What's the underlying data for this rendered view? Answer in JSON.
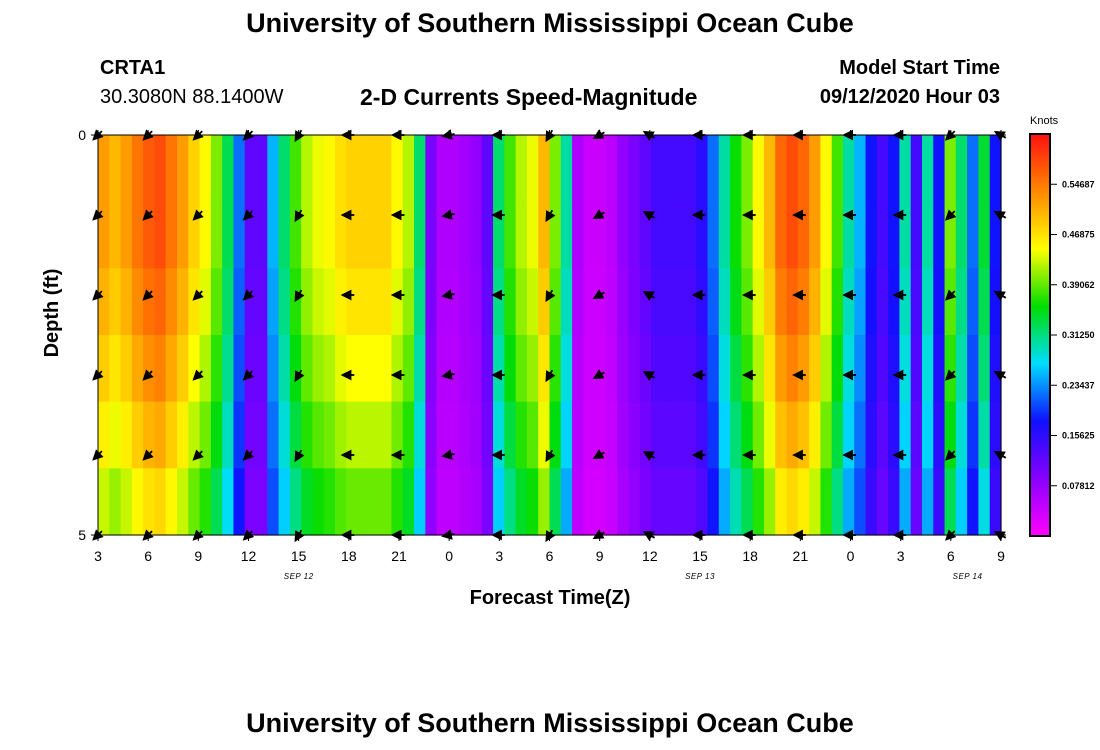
{
  "header": {
    "title": "University of Southern Mississippi Ocean Cube",
    "station": "CRTA1",
    "coords": "30.3080N 88.1400W",
    "product": "2-D Currents Speed-Magnitude",
    "model_start_label": "Model Start Time",
    "model_start_value": "09/12/2020 Hour 03"
  },
  "footer": {
    "title": "University of Southern Mississippi Ocean Cube"
  },
  "chart_data": {
    "type": "heatmap",
    "xlabel": "Forecast Time(Z)",
    "ylabel": "Depth (ft)",
    "x_hours": [
      0,
      54
    ],
    "y_range": [
      0,
      5
    ],
    "y_ticks": [
      "0",
      "5"
    ],
    "x_ticks": [
      "3",
      "6",
      "9",
      "12",
      "15",
      "18",
      "21",
      "0",
      "3",
      "6",
      "9",
      "12",
      "15",
      "18",
      "21",
      "0",
      "3",
      "6",
      "9"
    ],
    "day_labels": [
      {
        "text": "SEP 12",
        "hour": 12
      },
      {
        "text": "SEP 13",
        "hour": 36
      },
      {
        "text": "SEP 14",
        "hour": 52
      }
    ],
    "colorbar": {
      "label": "Knots",
      "vmin": 0,
      "vmax": 0.625,
      "ticks": [
        "0.54687",
        "0.46875",
        "0.39062",
        "0.31250",
        "0.23437",
        "0.15625",
        "0.07812"
      ],
      "tick_values": [
        0.546875,
        0.46875,
        0.390625,
        0.3125,
        0.234375,
        0.15625,
        0.078125
      ],
      "colors": [
        "#ff00ff",
        "#8800ff",
        "#1010ff",
        "#00ddff",
        "#00dd00",
        "#ffff00",
        "#ff8800",
        "#ff1010"
      ]
    },
    "speed_column_profile_knots": [
      0.52,
      0.5,
      0.52,
      0.55,
      0.57,
      0.58,
      0.55,
      0.52,
      0.48,
      0.45,
      0.4,
      0.33,
      0.22,
      0.12,
      0.12,
      0.25,
      0.32,
      0.38,
      0.42,
      0.44,
      0.45,
      0.47,
      0.48,
      0.48,
      0.48,
      0.48,
      0.45,
      0.42,
      0.32,
      0.1,
      0.06,
      0.06,
      0.07,
      0.08,
      0.12,
      0.32,
      0.38,
      0.42,
      0.44,
      0.5,
      0.4,
      0.3,
      0.06,
      0.04,
      0.04,
      0.05,
      0.08,
      0.1,
      0.12,
      0.14,
      0.14,
      0.14,
      0.14,
      0.16,
      0.22,
      0.3,
      0.36,
      0.4,
      0.45,
      0.5,
      0.56,
      0.58,
      0.56,
      0.52,
      0.45,
      0.38,
      0.3,
      0.25,
      0.18,
      0.14,
      0.18,
      0.3,
      0.14,
      0.3,
      0.18,
      0.4,
      0.32,
      0.22,
      0.34,
      0.18
    ],
    "depth_factor": [
      1.0,
      1.0,
      0.97,
      0.93,
      0.88,
      0.82
    ],
    "arrows": {
      "hours": [
        0,
        3,
        6,
        9,
        12,
        15,
        18,
        21,
        24,
        27,
        30,
        33,
        36,
        39,
        42,
        45,
        48,
        51,
        54
      ],
      "depth_rows": [
        0,
        1,
        2,
        3,
        4,
        5
      ],
      "direction_deg": [
        135,
        135,
        135,
        135,
        120,
        180,
        180,
        170,
        180,
        120,
        150,
        210,
        180,
        180,
        180,
        180,
        180,
        135,
        210
      ]
    }
  }
}
